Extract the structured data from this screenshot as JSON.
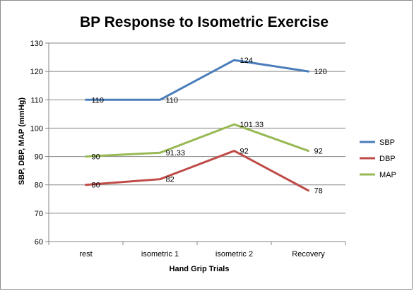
{
  "chart_data": {
    "type": "line",
    "title": "BP Response to Isometric Exercise",
    "xlabel": "Hand Grip Trials",
    "ylabel": "SBP, DBP, MAP (mmHg)",
    "categories": [
      "rest",
      "isometric 1",
      "isometric 2",
      "Recovery"
    ],
    "ylim": [
      60,
      130
    ],
    "yticks": [
      60,
      70,
      80,
      90,
      100,
      110,
      120,
      130
    ],
    "grid": true,
    "legend_position": "right",
    "series": [
      {
        "name": "SBP",
        "color": "#4a7ebb",
        "values": [
          110,
          110,
          124,
          120
        ],
        "labels": [
          "110",
          "110",
          "124",
          "120"
        ]
      },
      {
        "name": "DBP",
        "color": "#be4b48",
        "values": [
          80,
          82,
          92,
          78
        ],
        "labels": [
          "80",
          "82",
          "92",
          "78"
        ]
      },
      {
        "name": "MAP",
        "color": "#98b954",
        "values": [
          90,
          91.33,
          101.33,
          92
        ],
        "labels": [
          "90",
          "91.33",
          "101.33",
          "92"
        ]
      }
    ]
  }
}
